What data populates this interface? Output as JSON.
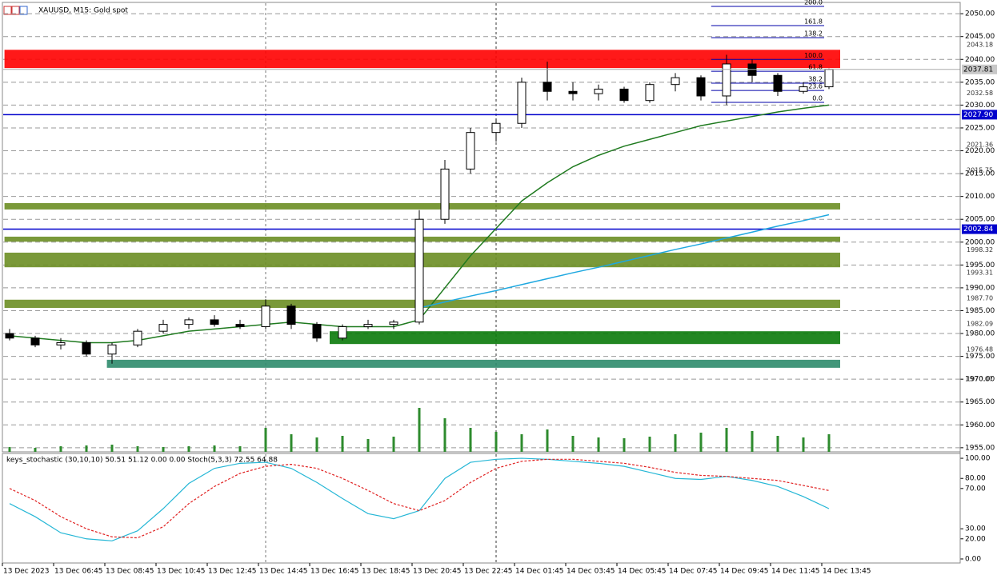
{
  "chart_data": [
    {
      "type": "candlestick",
      "title": "XAUUSD, M15:  Gold spot",
      "categories": [
        "13 Dec 2023",
        null,
        "13 Dec 06:45",
        null,
        "13 Dec 08:45",
        null,
        "13 Dec 10:45",
        null,
        "13 Dec 12:45",
        null,
        "13 Dec 14:45",
        null,
        "13 Dec 16:45",
        null,
        "13 Dec 18:45",
        null,
        "13 Dec 20:45",
        null,
        "13 Dec 22:45",
        null,
        "14 Dec 01:45",
        null,
        "14 Dec 03:45",
        null,
        "14 Dec 05:45",
        null,
        "14 Dec 07:45",
        null,
        "14 Dec 09:45",
        null,
        "14 Dec 11:45",
        null,
        "14 Dec 13:45"
      ],
      "open": [
        1980,
        1979,
        1977.5,
        1978,
        1975.5,
        1977.5,
        1980.5,
        1982,
        1983,
        1982,
        1981.5,
        1986,
        1982,
        1979,
        1981.5,
        1982,
        1982.5,
        2005,
        2016,
        2024,
        2026,
        2035,
        2033,
        2032.5,
        2033.5,
        2031,
        2034.5,
        2036,
        2032,
        2039,
        2036.5,
        2033,
        2034
      ],
      "high": [
        1981,
        1979.5,
        1979,
        1978.5,
        1978,
        1981,
        1983,
        1983.5,
        1984,
        1983,
        1987.5,
        1986.5,
        1982.5,
        1982,
        1983,
        1983,
        2007,
        2018,
        2025,
        2027,
        2036,
        2039.5,
        2035,
        2034.5,
        2034,
        2035,
        2037,
        2036.5,
        2041,
        2040,
        2037,
        2035,
        2038
      ],
      "low": [
        1978.5,
        1977,
        1976.5,
        1975,
        1973.4,
        1977,
        1980,
        1981,
        1981.5,
        1981,
        1981,
        1981,
        1978.2,
        1978.5,
        1981,
        1981,
        1982,
        2004,
        2015,
        2022,
        2025,
        2031,
        2031,
        2031,
        2030.5,
        2030.5,
        2033,
        2031,
        2030,
        2035,
        2032,
        2032.5,
        2033.5
      ],
      "close": [
        1979,
        1977.5,
        1978,
        1975.5,
        1977.5,
        1980.5,
        1982,
        1983,
        1982,
        1981.5,
        1986,
        1982,
        1979,
        1981.5,
        1982,
        1982.5,
        2005,
        2016,
        2024,
        2026,
        2035,
        2033,
        2032.5,
        2033.5,
        2031,
        2034.5,
        2036,
        2032,
        2039,
        2036.5,
        2033,
        2034,
        2037.81
      ],
      "up_color": "#ffffff",
      "down_color": "#000000",
      "overlays": [
        {
          "color": "#1f7a1f",
          "values": [
            1979.5,
            1979,
            1978.5,
            1978,
            1978,
            1978.5,
            1979.5,
            1980.5,
            1981,
            1981.5,
            1982,
            1982.5,
            1982,
            1981.5,
            1981.5,
            1981.5,
            1983,
            1990,
            1997,
            2003,
            2009,
            2013,
            2016.5,
            2019,
            2021,
            2022.5,
            2024,
            2025.5,
            2026.5,
            2027.5,
            2028.5,
            2029.3,
            2030
          ]
        },
        {
          "color": "#1fa8e0",
          "values": [
            null,
            null,
            null,
            null,
            null,
            null,
            null,
            null,
            null,
            null,
            null,
            null,
            null,
            null,
            null,
            null,
            1985.6,
            1986.9,
            1988.2,
            1989.4,
            1990.7,
            1992,
            1993.3,
            1994.5,
            1995.8,
            1997.1,
            1998.4,
            1999.6,
            2000.9,
            2002.2,
            2003.5,
            2004.7,
            2006
          ]
        }
      ],
      "volume": {
        "color": "#2e8b2e",
        "values": [
          6,
          5,
          7,
          8,
          9,
          7,
          6,
          7,
          8,
          7,
          30,
          22,
          18,
          20,
          16,
          19,
          55,
          42,
          30,
          25,
          22,
          28,
          20,
          18,
          17,
          19,
          22,
          24,
          30,
          26,
          20,
          18,
          22
        ]
      },
      "zones": [
        {
          "start": -0.2,
          "low": 2038.1,
          "high": 2042.1,
          "color": "#ff0000"
        },
        {
          "start": -0.2,
          "low": 2007.15,
          "high": 2008.55,
          "color": "#6b8e23"
        },
        {
          "start": -0.2,
          "low": 2000.1,
          "high": 2001.2,
          "color": "#6b8e23"
        },
        {
          "start": -0.2,
          "low": 1994.5,
          "high": 1997.7,
          "color": "#6b8e23"
        },
        {
          "start": -0.2,
          "low": 1985.6,
          "high": 1987.4,
          "color": "#6b8e23"
        },
        {
          "start": 12.5,
          "low": 1977.7,
          "high": 1980.5,
          "color": "#0a7a0a"
        },
        {
          "start": 3.8,
          "low": 1972.5,
          "high": 1974.25,
          "color": "#2e8b6b"
        }
      ],
      "ylim": [
        1954.1,
        2052.3
      ],
      "yticks": [
        {
          "value": 2050,
          "label": "2050.00"
        },
        {
          "value": 2045,
          "label": "2045.00"
        },
        {
          "value": 2040,
          "label": "2040.00"
        },
        {
          "value": 2035,
          "label": "2035.00"
        },
        {
          "value": 2030,
          "label": "2030.00"
        },
        {
          "value": 2025,
          "label": "2025.00"
        },
        {
          "value": 2020,
          "label": "2020.00"
        },
        {
          "value": 2015,
          "label": "2015.00"
        },
        {
          "value": 2010,
          "label": "2010.00"
        },
        {
          "value": 2005,
          "label": "2005.00"
        },
        {
          "value": 2000,
          "label": "2000.00"
        },
        {
          "value": 1995,
          "label": "1995.00"
        },
        {
          "value": 1990,
          "label": "1990.00"
        },
        {
          "value": 1985,
          "label": "1985.00"
        },
        {
          "value": 1980,
          "label": "1980.00"
        },
        {
          "value": 1975,
          "label": "1975.00"
        },
        {
          "value": 1970,
          "label": "1970.00"
        },
        {
          "value": 1965,
          "label": "1965.00"
        },
        {
          "value": 1960,
          "label": "1960.00"
        },
        {
          "value": 1955,
          "label": "1955.00"
        }
      ],
      "grid": true,
      "levels": [
        2043.18,
        2032.58,
        2021.36,
        2015.75,
        1998.32,
        1993.31,
        {
          "value": 1987.7,
          "label": "1987.70"
        },
        1982.09,
        1976.48,
        1970.07
      ],
      "lines": [
        {
          "price": {
            "value": 2027.9,
            "label": "2027.90"
          },
          "color": "#0000cc"
        },
        {
          "price": 2002.84,
          "color": "#0000cc"
        }
      ],
      "current_price": 2037.81,
      "fib": {
        "start": 27.4,
        "color": "#0000aa",
        "levels": [
          {
            "label": "200.0",
            "price": 2051.6
          },
          {
            "label": "161.8",
            "price": 2047.4
          },
          {
            "label": "138.2",
            "price": 2044.75
          },
          {
            "label": "100.0",
            "price": 2040
          },
          {
            "label": "61.8",
            "price": 2037.4
          },
          {
            "label": "38.2",
            "price": 2034.8
          },
          {
            "label": "23.6",
            "price": 2033.2
          },
          {
            "label": "0.0",
            "price": 2030.6
          }
        ]
      }
    },
    {
      "type": "line",
      "title": "keys_stochastic (30,10,10) 50.51 51.12 0.00 0.00 Stoch(5,3,3) 72.55 64.88",
      "series": [
        {
          "color": "#26b7d6",
          "values": [
            55,
            42,
            26,
            20,
            18,
            28,
            50,
            75,
            90,
            95,
            96,
            90,
            76,
            60,
            45,
            40,
            48,
            80,
            96,
            99,
            100,
            99,
            97,
            95,
            92,
            86,
            80,
            79,
            82,
            78,
            72,
            62,
            50
          ]
        },
        {
          "color": "#e02020",
          "dashed": true,
          "values": [
            70,
            58,
            42,
            30,
            22,
            21,
            32,
            55,
            72,
            85,
            92,
            94,
            90,
            80,
            68,
            55,
            48,
            58,
            76,
            90,
            97,
            99,
            99,
            97,
            95,
            91,
            86,
            83,
            82,
            80,
            78,
            73,
            68
          ]
        }
      ],
      "ylim": [
        -3.2,
        104.8
      ],
      "yticks": [
        {
          "value": 100,
          "label": "100.00"
        },
        {
          "value": 80,
          "label": "80.00"
        },
        {
          "value": 70,
          "label": "70.00"
        },
        {
          "value": 30,
          "label": "30.00"
        },
        {
          "value": 20,
          "label": "20.00"
        },
        {
          "value": 0,
          "label": "0.00"
        }
      ]
    }
  ]
}
